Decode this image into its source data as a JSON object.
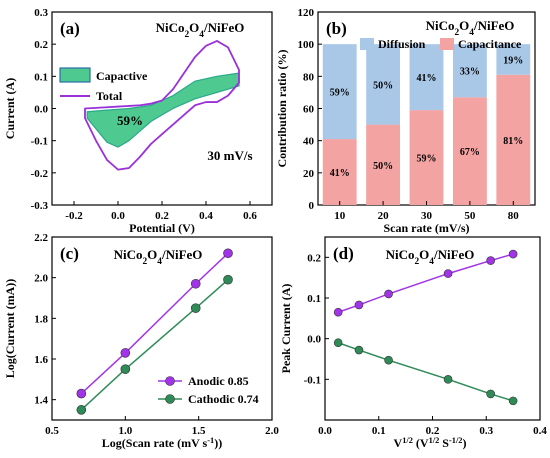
{
  "chart_data": [
    {
      "panel": "(a)",
      "type": "line",
      "title": "NiCo2O4/NiFeO",
      "xlabel": "Potential (V)",
      "ylabel": "Current (A)",
      "xlim": [
        -0.3,
        0.7
      ],
      "ylim": [
        -0.3,
        0.3
      ],
      "xticks": [
        -0.2,
        0.0,
        0.2,
        0.4,
        0.6
      ],
      "yticks": [
        -0.3,
        -0.2,
        -0.1,
        0.0,
        0.1,
        0.2,
        0.3
      ],
      "annotations": [
        "59%",
        "30 mV/s"
      ],
      "legend": [
        "Capactive",
        "Total"
      ],
      "series": [
        {
          "name": "Total",
          "color": "#9b30d9",
          "x": [
            -0.15,
            -0.1,
            -0.05,
            0.0,
            0.05,
            0.1,
            0.15,
            0.2,
            0.25,
            0.3,
            0.35,
            0.4,
            0.45,
            0.5,
            0.55,
            0.55,
            0.5,
            0.45,
            0.4,
            0.35,
            0.3,
            0.25,
            0.2,
            0.15,
            0.1,
            0.05,
            0.0,
            -0.05,
            -0.1,
            -0.15
          ],
          "y": [
            0.0,
            0.002,
            0.004,
            0.006,
            0.008,
            0.01,
            0.015,
            0.025,
            0.06,
            0.11,
            0.16,
            0.195,
            0.21,
            0.19,
            0.12,
            0.08,
            0.04,
            0.02,
            0.02,
            0.01,
            -0.02,
            -0.05,
            -0.08,
            -0.11,
            -0.15,
            -0.185,
            -0.19,
            -0.16,
            -0.1,
            -0.03
          ]
        },
        {
          "name": "Capactive",
          "color": "#2aa88a",
          "fill": "#4ec98f",
          "x": [
            -0.14,
            -0.05,
            0.05,
            0.15,
            0.25,
            0.35,
            0.45,
            0.55,
            0.55,
            0.45,
            0.35,
            0.25,
            0.15,
            0.05,
            0.0,
            -0.05,
            -0.14
          ],
          "y": [
            -0.01,
            -0.005,
            0.0,
            0.01,
            0.04,
            0.085,
            0.1,
            0.11,
            0.07,
            0.05,
            0.03,
            0.0,
            -0.04,
            -0.1,
            -0.12,
            -0.105,
            -0.03
          ]
        }
      ]
    },
    {
      "panel": "(b)",
      "type": "bar",
      "title": "NiCo2O4/NiFeO",
      "xlabel": "Scan rate (mV/s)",
      "ylabel": "Contribution ratio (%)",
      "ylim": [
        0,
        120
      ],
      "yticks": [
        0,
        20,
        40,
        60,
        80,
        100,
        120
      ],
      "categories": [
        "10",
        "20",
        "30",
        "50",
        "80"
      ],
      "legend": [
        "Diffusion",
        "Capacitance"
      ],
      "series": [
        {
          "name": "Capacitance",
          "color": "#f4a3a3",
          "values": [
            41,
            50,
            59,
            67,
            81
          ],
          "labels": [
            "41%",
            "50%",
            "59%",
            "67%",
            "81%"
          ]
        },
        {
          "name": "Diffusion",
          "color": "#a9c8e8",
          "values": [
            59,
            50,
            41,
            33,
            19
          ],
          "labels": [
            "59%",
            "50%",
            "41%",
            "33%",
            "19%"
          ]
        }
      ]
    },
    {
      "panel": "(c)",
      "type": "line",
      "title": "NiCo2O4/NiFeO",
      "xlabel": "Log(Scan rate (mV s-1))",
      "ylabel": "Log(Current (mA))",
      "xlim": [
        0.5,
        2.0
      ],
      "ylim": [
        1.3,
        2.2
      ],
      "xticks": [
        0.5,
        1.0,
        1.5,
        2.0
      ],
      "yticks": [
        1.4,
        1.6,
        1.8,
        2.0,
        2.2
      ],
      "legend": [
        "Anodic 0.85",
        "Cathodic 0.74"
      ],
      "series": [
        {
          "name": "Anodic 0.85",
          "color": "#a233e8",
          "x": [
            0.7,
            1.0,
            1.48,
            1.7
          ],
          "y": [
            1.43,
            1.63,
            1.97,
            2.12
          ]
        },
        {
          "name": "Cathodic 0.74",
          "color": "#2e8b57",
          "x": [
            0.7,
            1.0,
            1.48,
            1.7
          ],
          "y": [
            1.35,
            1.55,
            1.85,
            1.99
          ]
        }
      ]
    },
    {
      "panel": "(d)",
      "type": "line",
      "title": "NiCo2O4/NiFeO",
      "xlabel": "V1/2 (V1/2 S-1/2)",
      "ylabel": "Peak Current (A)",
      "xlim": [
        0.0,
        0.4
      ],
      "ylim": [
        -0.2,
        0.25
      ],
      "xticks": [
        0.0,
        0.1,
        0.2,
        0.3,
        0.4
      ],
      "yticks": [
        -0.1,
        0.0,
        0.1,
        0.2
      ],
      "series": [
        {
          "name": "anodic",
          "color": "#a233e8",
          "x": [
            0.0245,
            0.0632,
            0.1183,
            0.229,
            0.3082,
            0.35
          ],
          "y": [
            0.065,
            0.083,
            0.11,
            0.16,
            0.192,
            0.208
          ]
        },
        {
          "name": "cathodic",
          "color": "#2e8b57",
          "x": [
            0.0245,
            0.0632,
            0.1183,
            0.229,
            0.3082,
            0.35
          ],
          "y": [
            -0.01,
            -0.028,
            -0.053,
            -0.1,
            -0.136,
            -0.153
          ]
        }
      ]
    }
  ]
}
